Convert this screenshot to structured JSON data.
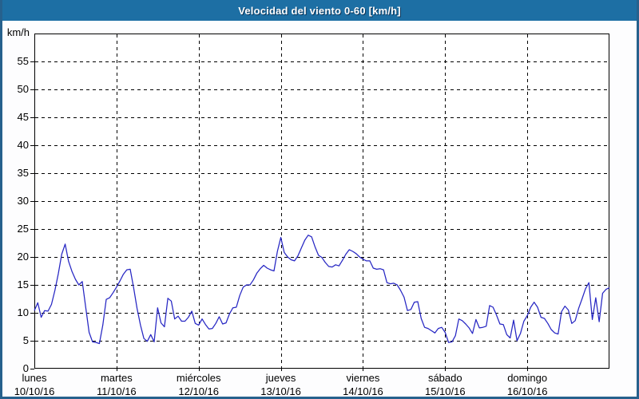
{
  "window": {
    "title": "Velocidad del viento 0-60 [km/h]"
  },
  "colors": {
    "titlebar_bg": "#1d6fa4",
    "frame": "#26618d",
    "page_bg": "#fdfdfe",
    "plot_bg": "#ffffff",
    "plot_border": "#000000",
    "grid": "#000000",
    "line": "#2626c3",
    "title_text": "#ffffff",
    "axis_text": "#000000"
  },
  "chart_data": {
    "type": "line",
    "title": "Velocidad del viento 0-60 [km/h]",
    "xlabel": "",
    "ylabel": "km/h",
    "ylim": [
      0,
      60
    ],
    "ytick_step": 5,
    "grid": true,
    "legend": "none",
    "x_unit": "hours since Monday 00:00, one point per hour",
    "x_range_hours": 168,
    "day_labels": [
      {
        "name": "lunes",
        "date": "10/10/16"
      },
      {
        "name": "martes",
        "date": "11/10/16"
      },
      {
        "name": "miércoles",
        "date": "12/10/16"
      },
      {
        "name": "jueves",
        "date": "13/10/16"
      },
      {
        "name": "viernes",
        "date": "14/10/16"
      },
      {
        "name": "sábado",
        "date": "15/10/16"
      },
      {
        "name": "domingo",
        "date": "16/10/16"
      }
    ],
    "series": [
      {
        "name": "Velocidad del viento (km/h)",
        "values": [
          10.4,
          11.8,
          9.2,
          10.4,
          10.3,
          11.5,
          14.0,
          17.0,
          20.5,
          22.3,
          19.2,
          17.4,
          16.0,
          15.0,
          15.6,
          11.0,
          6.5,
          4.8,
          4.7,
          4.5,
          7.8,
          12.4,
          12.7,
          13.6,
          14.6,
          15.7,
          16.9,
          17.7,
          17.8,
          14.5,
          10.8,
          7.8,
          5.4,
          4.9,
          6.1,
          4.8,
          10.9,
          8.2,
          7.5,
          12.6,
          12.1,
          8.9,
          9.4,
          8.5,
          8.5,
          9.2,
          10.3,
          8.1,
          7.8,
          8.9,
          7.9,
          7.1,
          7.2,
          8.1,
          9.3,
          8.0,
          8.2,
          9.8,
          10.9,
          11.0,
          13.1,
          14.6,
          15.0,
          15.0,
          15.9,
          17.1,
          17.9,
          18.5,
          18.0,
          17.7,
          17.5,
          21.0,
          23.5,
          20.8,
          20.0,
          19.5,
          19.3,
          20.2,
          21.6,
          23.0,
          23.9,
          23.6,
          21.8,
          20.3,
          19.9,
          19.0,
          18.3,
          18.2,
          18.6,
          18.4,
          19.4,
          20.5,
          21.3,
          21.0,
          20.6,
          20.0,
          19.6,
          19.3,
          19.3,
          18.0,
          17.8,
          17.9,
          17.7,
          15.4,
          15.2,
          15.3,
          15.0,
          14.0,
          12.8,
          10.4,
          10.6,
          11.9,
          12.0,
          9.0,
          7.4,
          7.2,
          6.8,
          6.4,
          7.2,
          7.4,
          6.5,
          4.7,
          4.8,
          5.9,
          8.9,
          8.6,
          8.0,
          7.3,
          6.3,
          8.8,
          7.3,
          7.4,
          7.6,
          11.3,
          11.0,
          9.6,
          8.0,
          7.9,
          6.1,
          5.5,
          8.7,
          5.0,
          6.3,
          8.5,
          9.5,
          11.0,
          11.9,
          11.0,
          9.2,
          9.0,
          8.1,
          7.0,
          6.4,
          6.2,
          10.2,
          11.2,
          10.5,
          8.1,
          8.6,
          10.8,
          12.5,
          14.3,
          15.4,
          8.8,
          12.7,
          8.4,
          13.5,
          14.2,
          14.5
        ]
      }
    ]
  }
}
